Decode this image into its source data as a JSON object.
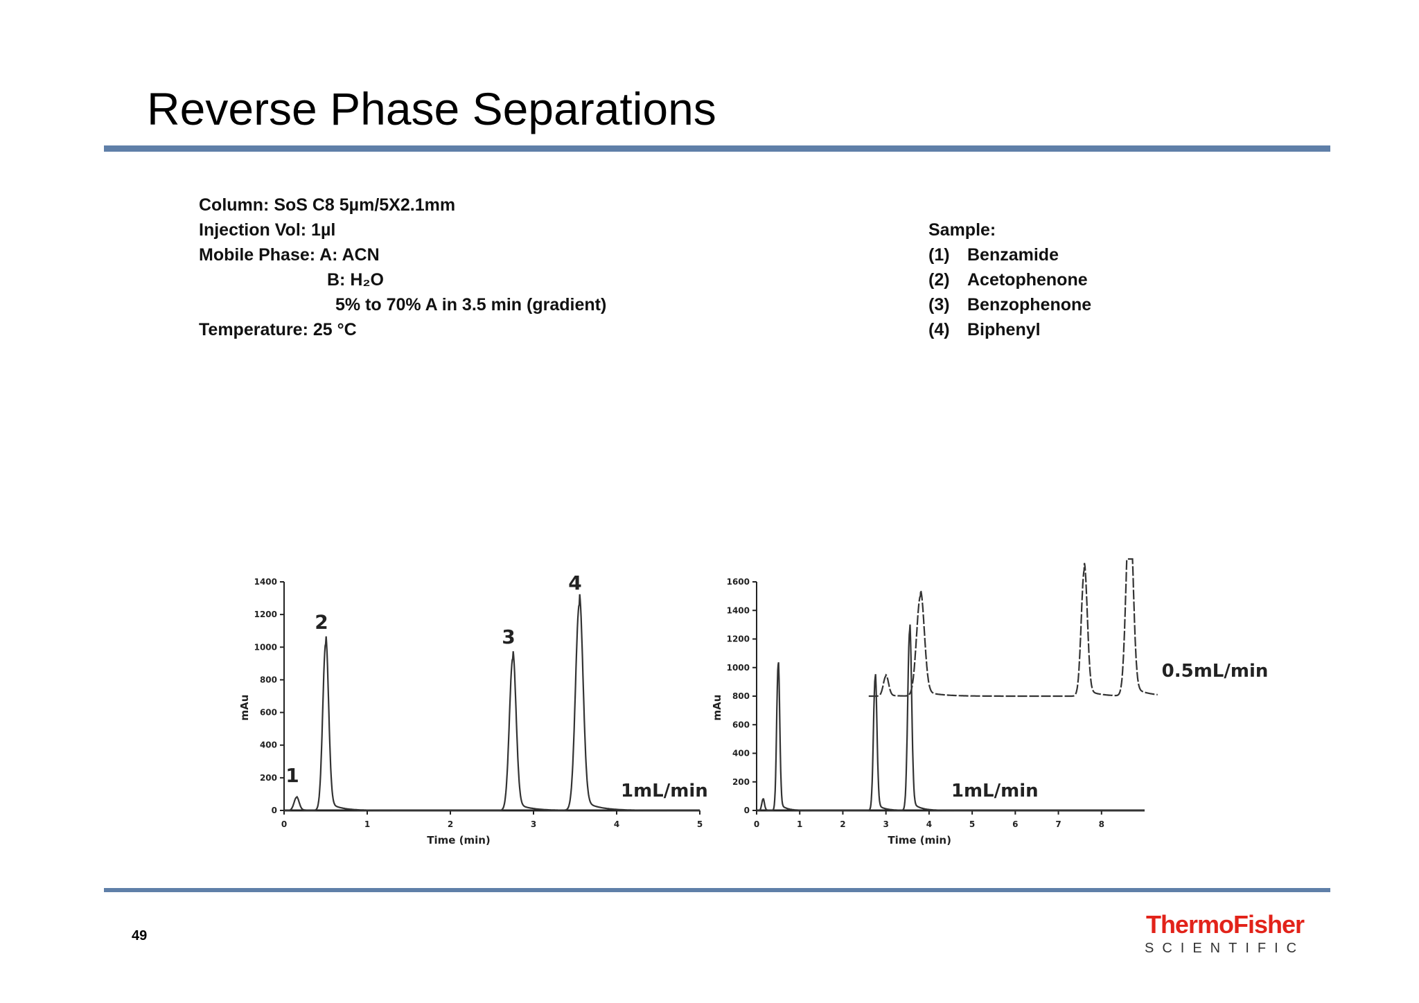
{
  "slide": {
    "title": "Reverse Phase Separations",
    "page_number": "49",
    "logo": {
      "brand": "ThermoFisher",
      "sub": "SCIENTIFIC",
      "brand_color": "#e2231a"
    },
    "rule_color": "#5f7fa8"
  },
  "conditions": {
    "column": "Column: SoS C8 5µm/5X2.1mm",
    "injection": "Injection Vol: 1µl",
    "mobile_a": "Mobile Phase: A: ACN",
    "mobile_b": "B: H₂O",
    "gradient": "5% to 70% A in 3.5 min (gradient)",
    "temperature": "Temperature: 25 °C"
  },
  "sample": {
    "heading": "Sample:",
    "items": [
      {
        "num": "(1)",
        "name": "Benzamide"
      },
      {
        "num": "(2)",
        "name": "Acetophenone"
      },
      {
        "num": "(3)",
        "name": "Benzophenone"
      },
      {
        "num": "(4)",
        "name": "Biphenyl"
      }
    ]
  },
  "chart_data": [
    {
      "type": "line",
      "xlabel": "Time (min)",
      "ylabel": "mAu",
      "xlim": [
        0,
        5
      ],
      "ylim": [
        0,
        1400
      ],
      "xticks": [
        0,
        1,
        2,
        3,
        4,
        5
      ],
      "yticks": [
        0,
        200,
        400,
        600,
        800,
        1000,
        1200,
        1400
      ],
      "series": [
        {
          "name": "1mL/min",
          "peaks": [
            {
              "label": "1",
              "t": 0.15,
              "height": 80,
              "width": 0.03
            },
            {
              "label": "2",
              "t": 0.5,
              "height": 1020,
              "width": 0.035
            },
            {
              "label": "3",
              "t": 2.75,
              "height": 930,
              "width": 0.04
            },
            {
              "label": "4",
              "t": 3.55,
              "height": 1260,
              "width": 0.045
            }
          ],
          "baseline": 0
        }
      ],
      "annotations": [
        "1mL/min"
      ],
      "peak_labels": [
        "1",
        "2",
        "3",
        "4"
      ]
    },
    {
      "type": "line",
      "xlabel": "Time (min)",
      "ylabel": "mAu",
      "xlim": [
        0,
        9
      ],
      "ylim": [
        0,
        1600
      ],
      "xticks": [
        0,
        1,
        2,
        3,
        4,
        5,
        6,
        7,
        8
      ],
      "yticks": [
        0,
        200,
        400,
        600,
        800,
        1000,
        1200,
        1400,
        1600
      ],
      "series": [
        {
          "name": "1mL/min",
          "peaks": [
            {
              "t": 0.15,
              "height": 80,
              "width": 0.03
            },
            {
              "t": 0.5,
              "height": 1020,
              "width": 0.035
            },
            {
              "t": 2.75,
              "height": 930,
              "width": 0.04
            },
            {
              "t": 3.55,
              "height": 1260,
              "width": 0.045
            }
          ],
          "baseline": 0
        },
        {
          "name": "0.5mL/min",
          "peaks": [
            {
              "t": 3.0,
              "height": 140,
              "width": 0.06
            },
            {
              "t": 3.8,
              "height": 700,
              "width": 0.09
            },
            {
              "t": 7.6,
              "height": 880,
              "width": 0.07
            },
            {
              "t": 8.65,
              "height": 1320,
              "width": 0.08
            }
          ],
          "baseline": 800,
          "x_start": 2.6,
          "x_end": 9.3
        }
      ],
      "annotations": [
        "1mL/min",
        "0.5mL/min"
      ]
    }
  ]
}
